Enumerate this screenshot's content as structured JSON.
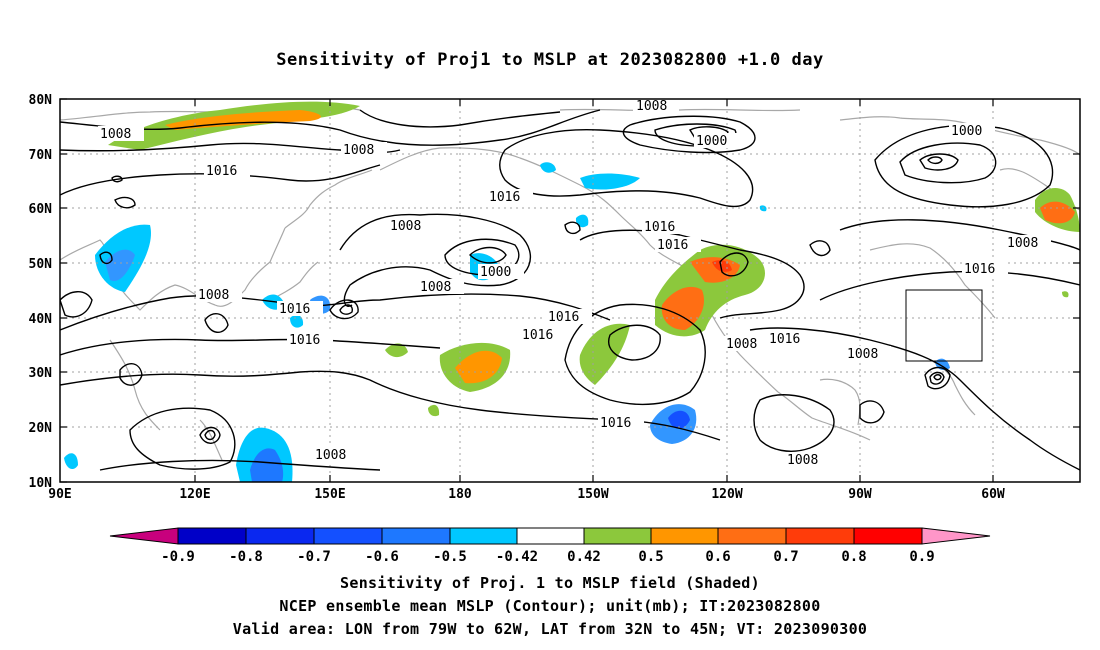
{
  "title": "Sensitivity of Proj1 to MSLP at 2023082800 +1.0 day",
  "axes": {
    "lat_labels": [
      "80N",
      "70N",
      "60N",
      "50N",
      "40N",
      "30N",
      "20N",
      "10N"
    ],
    "lon_labels": [
      "90E",
      "120E",
      "150E",
      "180",
      "150W",
      "120W",
      "90W",
      "60W"
    ]
  },
  "contour_labels": [
    "1008",
    "1008",
    "1016",
    "1008",
    "1016",
    "1008",
    "1016",
    "1000",
    "1008",
    "1016",
    "1008",
    "1016",
    "1016",
    "1008",
    "1016",
    "1016",
    "1008",
    "1016",
    "1000",
    "1000",
    "1016",
    "1008",
    "1008",
    "1008",
    "1016",
    "1008",
    "1008",
    "1016"
  ],
  "colorbar": {
    "labels": [
      "-0.9",
      "-0.8",
      "-0.7",
      "-0.6",
      "-0.5",
      "-0.42",
      "0.42",
      "0.5",
      "0.6",
      "0.7",
      "0.8",
      "0.9"
    ],
    "colors": [
      "#c8007d",
      "#0000c8",
      "#0a28f0",
      "#1450ff",
      "#1e78ff",
      "#3296ff",
      "#00c8ff",
      "#ffffff",
      "#8cc83c",
      "#ff9600",
      "#ff6e14",
      "#ff3c0a",
      "#ff0000",
      "#ff96c8"
    ]
  },
  "captions": [
    "Sensitivity of Proj. 1 to MSLP field (Shaded)",
    "NCEP ensemble mean MSLP (Contour); unit(mb); IT:2023082800",
    "Valid area: LON from 79W to 62W, LAT from 32N to 45N; VT: 2023090300"
  ]
}
